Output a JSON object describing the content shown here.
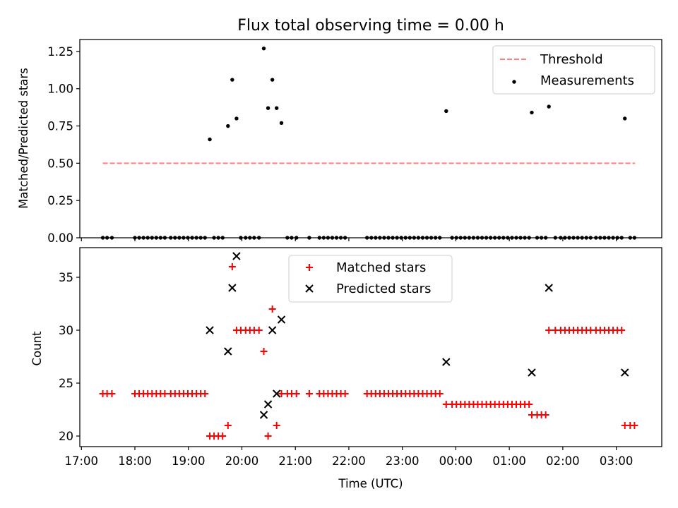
{
  "chart_data": [
    {
      "type": "scatter",
      "title": "Flux total observing time = 0.00 h",
      "xlabel": "",
      "ylabel": "Matched/Predicted stars",
      "xlim_hours": [
        16.97,
        27.85
      ],
      "ylim": [
        0.0,
        1.33
      ],
      "yticks": [
        0.0,
        0.25,
        0.5,
        0.75,
        1.0,
        1.25
      ],
      "ytick_labels": [
        "0.00",
        "0.25",
        "0.50",
        "0.75",
        "1.00",
        "1.25"
      ],
      "xticks_hours": [
        17,
        18,
        19,
        20,
        21,
        22,
        23,
        24,
        25,
        26,
        27
      ],
      "legend": {
        "position": "top-right",
        "entries": [
          "Threshold",
          "Measurements"
        ]
      },
      "threshold": {
        "name": "Threshold",
        "value": 0.5,
        "x_range_hours": [
          17.4,
          27.35
        ],
        "color": "#ff7f7f"
      },
      "measurements": {
        "name": "Measurements",
        "color": "#000000",
        "points": [
          [
            17.4,
            0
          ],
          [
            17.48,
            0
          ],
          [
            17.57,
            0
          ],
          [
            18.0,
            0
          ],
          [
            18.08,
            0
          ],
          [
            18.16,
            0
          ],
          [
            18.24,
            0
          ],
          [
            18.32,
            0
          ],
          [
            18.4,
            0
          ],
          [
            18.48,
            0
          ],
          [
            18.56,
            0
          ],
          [
            18.67,
            0
          ],
          [
            18.75,
            0
          ],
          [
            18.83,
            0
          ],
          [
            18.91,
            0
          ],
          [
            18.99,
            0
          ],
          [
            19.07,
            0
          ],
          [
            19.15,
            0
          ],
          [
            19.23,
            0
          ],
          [
            19.31,
            0
          ],
          [
            19.4,
            0.66
          ],
          [
            19.48,
            0
          ],
          [
            19.56,
            0
          ],
          [
            19.64,
            0
          ],
          [
            19.74,
            0.75
          ],
          [
            19.82,
            1.06
          ],
          [
            19.9,
            0.8
          ],
          [
            19.98,
            0
          ],
          [
            20.07,
            0
          ],
          [
            20.15,
            0
          ],
          [
            20.23,
            0
          ],
          [
            20.32,
            0
          ],
          [
            20.41,
            1.27
          ],
          [
            20.49,
            0.87
          ],
          [
            20.57,
            1.06
          ],
          [
            20.65,
            0.87
          ],
          [
            20.74,
            0.77
          ],
          [
            20.85,
            0
          ],
          [
            20.93,
            0
          ],
          [
            21.02,
            0
          ],
          [
            21.26,
            0
          ],
          [
            21.45,
            0
          ],
          [
            21.53,
            0
          ],
          [
            21.61,
            0
          ],
          [
            21.69,
            0
          ],
          [
            21.77,
            0
          ],
          [
            21.85,
            0
          ],
          [
            21.93,
            0
          ],
          [
            22.34,
            0
          ],
          [
            22.42,
            0
          ],
          [
            22.5,
            0
          ],
          [
            22.58,
            0
          ],
          [
            22.66,
            0
          ],
          [
            22.74,
            0
          ],
          [
            22.82,
            0
          ],
          [
            22.9,
            0
          ],
          [
            22.98,
            0
          ],
          [
            23.06,
            0
          ],
          [
            23.14,
            0
          ],
          [
            23.22,
            0
          ],
          [
            23.3,
            0
          ],
          [
            23.38,
            0
          ],
          [
            23.46,
            0
          ],
          [
            23.54,
            0
          ],
          [
            23.62,
            0
          ],
          [
            23.7,
            0
          ],
          [
            23.82,
            0.85
          ],
          [
            23.93,
            0
          ],
          [
            24.01,
            0
          ],
          [
            24.09,
            0
          ],
          [
            24.17,
            0
          ],
          [
            24.25,
            0
          ],
          [
            24.33,
            0
          ],
          [
            24.41,
            0
          ],
          [
            24.49,
            0
          ],
          [
            24.57,
            0
          ],
          [
            24.65,
            0
          ],
          [
            24.73,
            0
          ],
          [
            24.81,
            0
          ],
          [
            24.89,
            0
          ],
          [
            24.97,
            0
          ],
          [
            25.05,
            0
          ],
          [
            25.13,
            0
          ],
          [
            25.21,
            0
          ],
          [
            25.29,
            0
          ],
          [
            25.37,
            0
          ],
          [
            25.42,
            0.84
          ],
          [
            25.52,
            0
          ],
          [
            25.6,
            0
          ],
          [
            25.68,
            0
          ],
          [
            25.74,
            0.88
          ],
          [
            25.86,
            0
          ],
          [
            25.96,
            0
          ],
          [
            26.04,
            0
          ],
          [
            26.12,
            0
          ],
          [
            26.2,
            0
          ],
          [
            26.28,
            0
          ],
          [
            26.36,
            0
          ],
          [
            26.44,
            0
          ],
          [
            26.52,
            0
          ],
          [
            26.62,
            0
          ],
          [
            26.7,
            0
          ],
          [
            26.78,
            0
          ],
          [
            26.86,
            0
          ],
          [
            26.94,
            0
          ],
          [
            27.02,
            0
          ],
          [
            27.1,
            0
          ],
          [
            27.16,
            0.8
          ],
          [
            27.26,
            0
          ],
          [
            27.34,
            0
          ]
        ]
      }
    },
    {
      "type": "scatter",
      "title": "",
      "xlabel": "Time (UTC)",
      "ylabel": "Count",
      "xlim_hours": [
        16.97,
        27.85
      ],
      "ylim": [
        19.0,
        37.8
      ],
      "yticks": [
        20,
        25,
        30,
        35
      ],
      "ytick_labels": [
        "20",
        "25",
        "30",
        "35"
      ],
      "xticks_hours": [
        17,
        18,
        19,
        20,
        21,
        22,
        23,
        24,
        25,
        26,
        27
      ],
      "xtick_labels": [
        "17:00",
        "18:00",
        "19:00",
        "20:00",
        "21:00",
        "22:00",
        "23:00",
        "00:00",
        "01:00",
        "02:00",
        "03:00"
      ],
      "legend": {
        "position": "top-center",
        "entries": [
          "Matched stars",
          "Predicted stars"
        ]
      },
      "series": [
        {
          "name": "Matched stars",
          "marker": "+",
          "color": "#ff0000",
          "points": [
            [
              17.4,
              24
            ],
            [
              17.48,
              24
            ],
            [
              17.57,
              24
            ],
            [
              18.0,
              24
            ],
            [
              18.08,
              24
            ],
            [
              18.16,
              24
            ],
            [
              18.24,
              24
            ],
            [
              18.32,
              24
            ],
            [
              18.4,
              24
            ],
            [
              18.48,
              24
            ],
            [
              18.56,
              24
            ],
            [
              18.67,
              24
            ],
            [
              18.75,
              24
            ],
            [
              18.83,
              24
            ],
            [
              18.91,
              24
            ],
            [
              18.99,
              24
            ],
            [
              19.07,
              24
            ],
            [
              19.15,
              24
            ],
            [
              19.23,
              24
            ],
            [
              19.31,
              24
            ],
            [
              19.4,
              20
            ],
            [
              19.48,
              20
            ],
            [
              19.56,
              20
            ],
            [
              19.64,
              20
            ],
            [
              19.74,
              21
            ],
            [
              19.82,
              36
            ],
            [
              19.9,
              30
            ],
            [
              19.98,
              30
            ],
            [
              20.07,
              30
            ],
            [
              20.15,
              30
            ],
            [
              20.23,
              30
            ],
            [
              20.32,
              30
            ],
            [
              20.41,
              28
            ],
            [
              20.49,
              20
            ],
            [
              20.57,
              32
            ],
            [
              20.65,
              21
            ],
            [
              20.74,
              24
            ],
            [
              20.85,
              24
            ],
            [
              20.93,
              24
            ],
            [
              21.02,
              24
            ],
            [
              21.26,
              24
            ],
            [
              21.45,
              24
            ],
            [
              21.53,
              24
            ],
            [
              21.61,
              24
            ],
            [
              21.69,
              24
            ],
            [
              21.77,
              24
            ],
            [
              21.85,
              24
            ],
            [
              21.93,
              24
            ],
            [
              22.34,
              24
            ],
            [
              22.42,
              24
            ],
            [
              22.5,
              24
            ],
            [
              22.58,
              24
            ],
            [
              22.66,
              24
            ],
            [
              22.74,
              24
            ],
            [
              22.82,
              24
            ],
            [
              22.9,
              24
            ],
            [
              22.98,
              24
            ],
            [
              23.06,
              24
            ],
            [
              23.14,
              24
            ],
            [
              23.22,
              24
            ],
            [
              23.3,
              24
            ],
            [
              23.38,
              24
            ],
            [
              23.46,
              24
            ],
            [
              23.54,
              24
            ],
            [
              23.62,
              24
            ],
            [
              23.7,
              24
            ],
            [
              23.82,
              23
            ],
            [
              23.93,
              23
            ],
            [
              24.01,
              23
            ],
            [
              24.09,
              23
            ],
            [
              24.17,
              23
            ],
            [
              24.25,
              23
            ],
            [
              24.33,
              23
            ],
            [
              24.41,
              23
            ],
            [
              24.49,
              23
            ],
            [
              24.57,
              23
            ],
            [
              24.65,
              23
            ],
            [
              24.73,
              23
            ],
            [
              24.81,
              23
            ],
            [
              24.89,
              23
            ],
            [
              24.97,
              23
            ],
            [
              25.05,
              23
            ],
            [
              25.13,
              23
            ],
            [
              25.21,
              23
            ],
            [
              25.29,
              23
            ],
            [
              25.37,
              23
            ],
            [
              25.42,
              22
            ],
            [
              25.52,
              22
            ],
            [
              25.6,
              22
            ],
            [
              25.68,
              22
            ],
            [
              25.74,
              30
            ],
            [
              25.86,
              30
            ],
            [
              25.96,
              30
            ],
            [
              26.04,
              30
            ],
            [
              26.12,
              30
            ],
            [
              26.2,
              30
            ],
            [
              26.28,
              30
            ],
            [
              26.36,
              30
            ],
            [
              26.44,
              30
            ],
            [
              26.52,
              30
            ],
            [
              26.62,
              30
            ],
            [
              26.7,
              30
            ],
            [
              26.78,
              30
            ],
            [
              26.86,
              30
            ],
            [
              26.94,
              30
            ],
            [
              27.02,
              30
            ],
            [
              27.1,
              30
            ],
            [
              27.16,
              21
            ],
            [
              27.26,
              21
            ],
            [
              27.34,
              21
            ]
          ]
        },
        {
          "name": "Predicted stars",
          "marker": "x",
          "color": "#000000",
          "points": [
            [
              19.4,
              30
            ],
            [
              19.74,
              28
            ],
            [
              19.82,
              34
            ],
            [
              19.9,
              37
            ],
            [
              20.41,
              22
            ],
            [
              20.49,
              23
            ],
            [
              20.57,
              30
            ],
            [
              20.65,
              24
            ],
            [
              20.74,
              31
            ],
            [
              23.82,
              27
            ],
            [
              25.42,
              26
            ],
            [
              25.74,
              34
            ],
            [
              27.16,
              26
            ]
          ]
        }
      ]
    }
  ]
}
